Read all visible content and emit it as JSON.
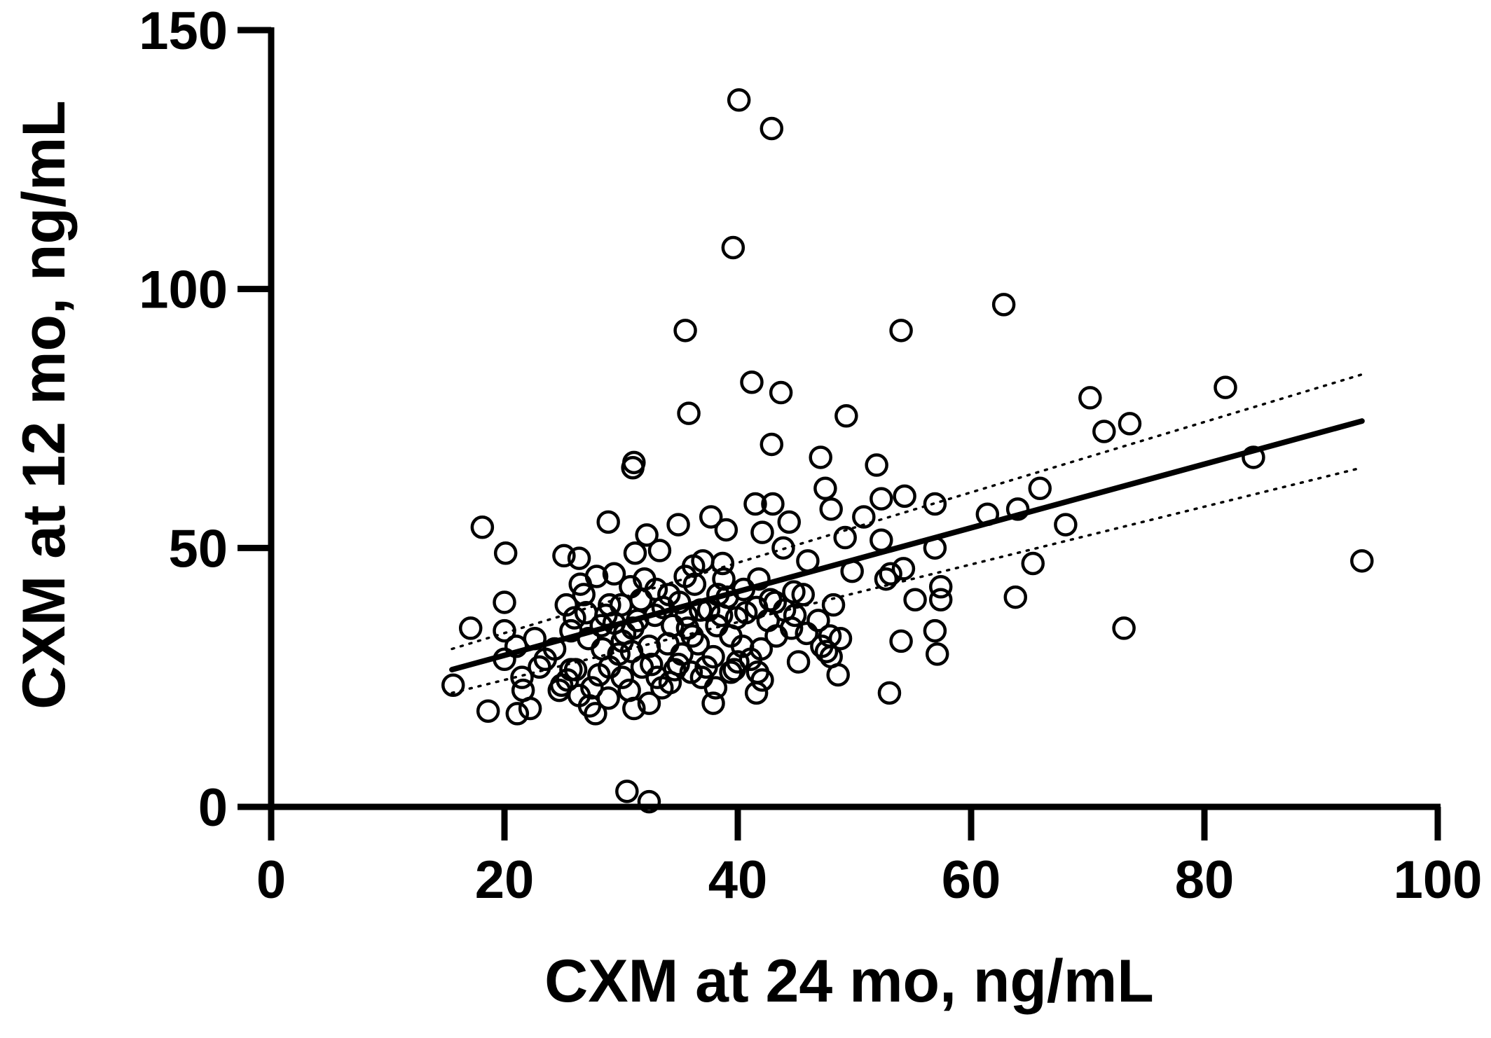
{
  "chart_data": {
    "type": "scatter",
    "title": "",
    "xlabel": "CXM at 24 mo, ng/mL",
    "ylabel": "CXM at 12 mo, ng/mL",
    "xlim": [
      0,
      100
    ],
    "ylim": [
      0,
      150
    ],
    "xticks": [
      "0",
      "20",
      "40",
      "60",
      "80",
      "100"
    ],
    "yticks": [
      "0",
      "50",
      "100",
      "150"
    ],
    "grid": false,
    "legend": "none",
    "marker": "open-circle",
    "regression_line": {
      "x": [
        15.5,
        93.5
      ],
      "y": [
        26.5,
        74.5
      ]
    },
    "confidence_band": {
      "upper": {
        "x": [
          15.5,
          93.5
        ],
        "y": [
          30.5,
          83.5
        ]
      },
      "lower": {
        "x": [
          15.5,
          93.5
        ],
        "y": [
          22.0,
          65.5
        ]
      }
    },
    "points": [
      [
        40.1,
        136.5
      ],
      [
        42.9,
        131.0
      ],
      [
        39.6,
        108.0
      ],
      [
        62.8,
        97.0
      ],
      [
        35.5,
        92.0
      ],
      [
        54.0,
        92.0
      ],
      [
        41.2,
        82.0
      ],
      [
        43.7,
        80.0
      ],
      [
        81.8,
        81.0
      ],
      [
        70.2,
        79.0
      ],
      [
        35.8,
        76.0
      ],
      [
        49.3,
        75.5
      ],
      [
        73.6,
        74.0
      ],
      [
        71.4,
        72.5
      ],
      [
        42.9,
        70.0
      ],
      [
        84.2,
        67.5
      ],
      [
        47.1,
        67.5
      ],
      [
        31.1,
        66.5
      ],
      [
        31.0,
        65.5
      ],
      [
        51.9,
        66.0
      ],
      [
        47.5,
        61.5
      ],
      [
        65.9,
        61.5
      ],
      [
        54.3,
        60.0
      ],
      [
        52.3,
        59.5
      ],
      [
        41.5,
        58.5
      ],
      [
        43.0,
        58.5
      ],
      [
        56.9,
        58.5
      ],
      [
        48.0,
        57.5
      ],
      [
        64.0,
        57.5
      ],
      [
        61.4,
        56.5
      ],
      [
        50.8,
        56.0
      ],
      [
        37.7,
        56.0
      ],
      [
        28.9,
        55.0
      ],
      [
        34.9,
        54.5
      ],
      [
        18.1,
        54.0
      ],
      [
        68.1,
        54.5
      ],
      [
        44.4,
        55.0
      ],
      [
        39.0,
        53.5
      ],
      [
        32.2,
        52.5
      ],
      [
        42.1,
        53.0
      ],
      [
        49.2,
        52.0
      ],
      [
        52.3,
        51.5
      ],
      [
        56.9,
        50.0
      ],
      [
        43.9,
        50.0
      ],
      [
        33.3,
        49.5
      ],
      [
        31.2,
        49.0
      ],
      [
        20.1,
        49.0
      ],
      [
        25.1,
        48.5
      ],
      [
        26.4,
        48.0
      ],
      [
        37.0,
        47.5
      ],
      [
        46.0,
        47.5
      ],
      [
        65.3,
        47.0
      ],
      [
        93.5,
        47.5
      ],
      [
        38.7,
        47.0
      ],
      [
        54.2,
        46.0
      ],
      [
        49.8,
        45.5
      ],
      [
        53.1,
        45.0
      ],
      [
        29.4,
        45.0
      ],
      [
        35.5,
        44.5
      ],
      [
        27.9,
        44.5
      ],
      [
        52.7,
        44.0
      ],
      [
        41.8,
        44.0
      ],
      [
        26.5,
        43.0
      ],
      [
        36.3,
        43.0
      ],
      [
        30.8,
        42.5
      ],
      [
        57.4,
        42.5
      ],
      [
        33.0,
        42.0
      ],
      [
        44.8,
        41.5
      ],
      [
        34.1,
        41.0
      ],
      [
        38.3,
        41.0
      ],
      [
        55.2,
        40.0
      ],
      [
        63.8,
        40.5
      ],
      [
        57.4,
        40.0
      ],
      [
        31.7,
        40.0
      ],
      [
        25.3,
        39.0
      ],
      [
        29.0,
        39.0
      ],
      [
        48.2,
        39.0
      ],
      [
        41.6,
        38.5
      ],
      [
        36.8,
        38.0
      ],
      [
        20.0,
        39.5
      ],
      [
        44.0,
        38.0
      ],
      [
        27.0,
        37.5
      ],
      [
        32.9,
        37.0
      ],
      [
        35.6,
        37.0
      ],
      [
        39.9,
        36.5
      ],
      [
        42.6,
        36.0
      ],
      [
        46.9,
        36.0
      ],
      [
        29.4,
        35.5
      ],
      [
        34.4,
        35.0
      ],
      [
        38.2,
        35.0
      ],
      [
        31.0,
        34.5
      ],
      [
        73.1,
        34.5
      ],
      [
        56.9,
        34.0
      ],
      [
        20.0,
        34.0
      ],
      [
        17.1,
        34.5
      ],
      [
        25.7,
        34.0
      ],
      [
        45.9,
        33.5
      ],
      [
        36.1,
        33.0
      ],
      [
        43.3,
        33.0
      ],
      [
        48.8,
        32.5
      ],
      [
        22.6,
        32.5
      ],
      [
        30.1,
        32.0
      ],
      [
        34.0,
        31.5
      ],
      [
        54.0,
        32.0
      ],
      [
        21.0,
        31.0
      ],
      [
        40.4,
        31.0
      ],
      [
        28.4,
        30.5
      ],
      [
        47.6,
        30.0
      ],
      [
        57.1,
        29.5
      ],
      [
        35.2,
        29.5
      ],
      [
        20.0,
        28.5
      ],
      [
        23.5,
        28.5
      ],
      [
        37.9,
        29.0
      ],
      [
        41.1,
        28.5
      ],
      [
        45.2,
        28.0
      ],
      [
        32.6,
        27.5
      ],
      [
        29.0,
        27.0
      ],
      [
        26.1,
        26.5
      ],
      [
        34.6,
        26.5
      ],
      [
        39.4,
        26.0
      ],
      [
        48.6,
        25.5
      ],
      [
        21.5,
        25.0
      ],
      [
        30.1,
        25.0
      ],
      [
        36.9,
        25.0
      ],
      [
        42.1,
        24.5
      ],
      [
        15.6,
        23.5
      ],
      [
        24.9,
        23.5
      ],
      [
        27.5,
        23.0
      ],
      [
        33.5,
        23.0
      ],
      [
        38.1,
        23.0
      ],
      [
        21.6,
        22.5
      ],
      [
        30.7,
        22.5
      ],
      [
        41.6,
        22.0
      ],
      [
        53.0,
        22.0
      ],
      [
        26.4,
        21.5
      ],
      [
        28.9,
        21.0
      ],
      [
        32.4,
        20.0
      ],
      [
        37.9,
        20.0
      ],
      [
        22.2,
        19.0
      ],
      [
        27.3,
        19.5
      ],
      [
        31.1,
        19.0
      ],
      [
        18.6,
        18.5
      ],
      [
        21.1,
        18.0
      ],
      [
        27.8,
        18.0
      ],
      [
        39.1,
        40.5
      ],
      [
        35.0,
        39.5
      ],
      [
        33.6,
        38.5
      ],
      [
        37.5,
        38.0
      ],
      [
        28.7,
        37.0
      ],
      [
        31.4,
        36.0
      ],
      [
        40.7,
        37.5
      ],
      [
        43.2,
        39.5
      ],
      [
        26.0,
        36.5
      ],
      [
        30.3,
        33.5
      ],
      [
        36.6,
        31.5
      ],
      [
        39.4,
        33.0
      ],
      [
        42.0,
        30.5
      ],
      [
        44.6,
        34.5
      ],
      [
        24.3,
        30.5
      ],
      [
        32.4,
        31.0
      ],
      [
        29.8,
        29.5
      ],
      [
        34.9,
        27.5
      ],
      [
        37.3,
        27.0
      ],
      [
        40.0,
        28.0
      ],
      [
        27.2,
        32.5
      ],
      [
        25.7,
        26.5
      ],
      [
        33.1,
        25.0
      ],
      [
        23.0,
        27.0
      ],
      [
        38.8,
        44.0
      ],
      [
        36.2,
        46.5
      ],
      [
        40.5,
        42.0
      ],
      [
        45.6,
        41.0
      ],
      [
        32.0,
        44.0
      ],
      [
        30.0,
        39.0
      ],
      [
        26.8,
        41.0
      ],
      [
        28.3,
        35.0
      ],
      [
        30.9,
        30.0
      ],
      [
        35.7,
        34.5
      ],
      [
        38.6,
        37.0
      ],
      [
        42.8,
        40.0
      ],
      [
        44.9,
        37.0
      ],
      [
        47.9,
        33.0
      ],
      [
        48.0,
        29.0
      ],
      [
        47.2,
        31.0
      ],
      [
        25.4,
        24.5
      ],
      [
        24.7,
        22.5
      ],
      [
        28.1,
        25.5
      ],
      [
        31.8,
        27.0
      ],
      [
        34.2,
        24.0
      ],
      [
        36.0,
        26.0
      ],
      [
        39.7,
        26.5
      ],
      [
        41.7,
        26.0
      ],
      [
        30.5,
        3.0
      ],
      [
        32.4,
        1.0
      ]
    ]
  }
}
